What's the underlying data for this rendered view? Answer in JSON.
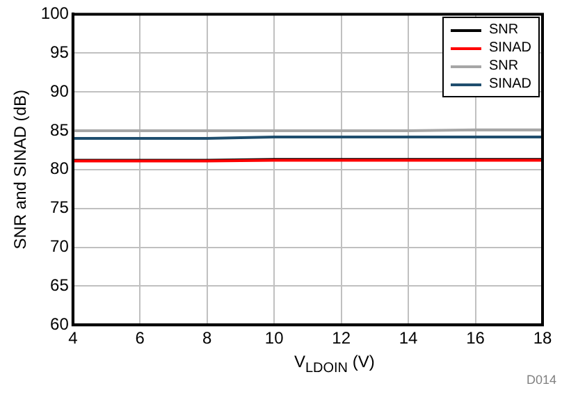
{
  "chart_data": {
    "type": "line",
    "xlabel": "V$_{LDOIN}$ (V)",
    "ylabel": "SNR and SINAD (dB)",
    "x": [
      4,
      6,
      8,
      10,
      12,
      14,
      16,
      18
    ],
    "series": [
      {
        "name": "SNR",
        "color": "#000000",
        "values": [
          81.2,
          81.2,
          81.2,
          81.3,
          81.3,
          81.3,
          81.3,
          81.3
        ]
      },
      {
        "name": "SINAD",
        "color": "#ff0000",
        "values": [
          81.1,
          81.1,
          81.1,
          81.2,
          81.2,
          81.2,
          81.2,
          81.2
        ]
      },
      {
        "name": "SNR",
        "color": "#a6a6a6",
        "values": [
          85,
          85,
          85,
          85,
          85,
          85,
          85.1,
          85.1
        ]
      },
      {
        "name": "SINAD",
        "color": "#1f4e6e",
        "values": [
          84,
          84,
          84,
          84.2,
          84.2,
          84.2,
          84.2,
          84.2
        ]
      }
    ],
    "xlim": [
      4,
      18
    ],
    "xticks": [
      4,
      6,
      8,
      10,
      12,
      14,
      16,
      18
    ],
    "ylim": [
      60,
      100
    ],
    "yticks": [
      60,
      65,
      70,
      75,
      80,
      85,
      90,
      95,
      100
    ],
    "grid": true,
    "legend": "top right",
    "marker": "none",
    "line_style": "solid",
    "annotations": [
      "D014"
    ]
  }
}
